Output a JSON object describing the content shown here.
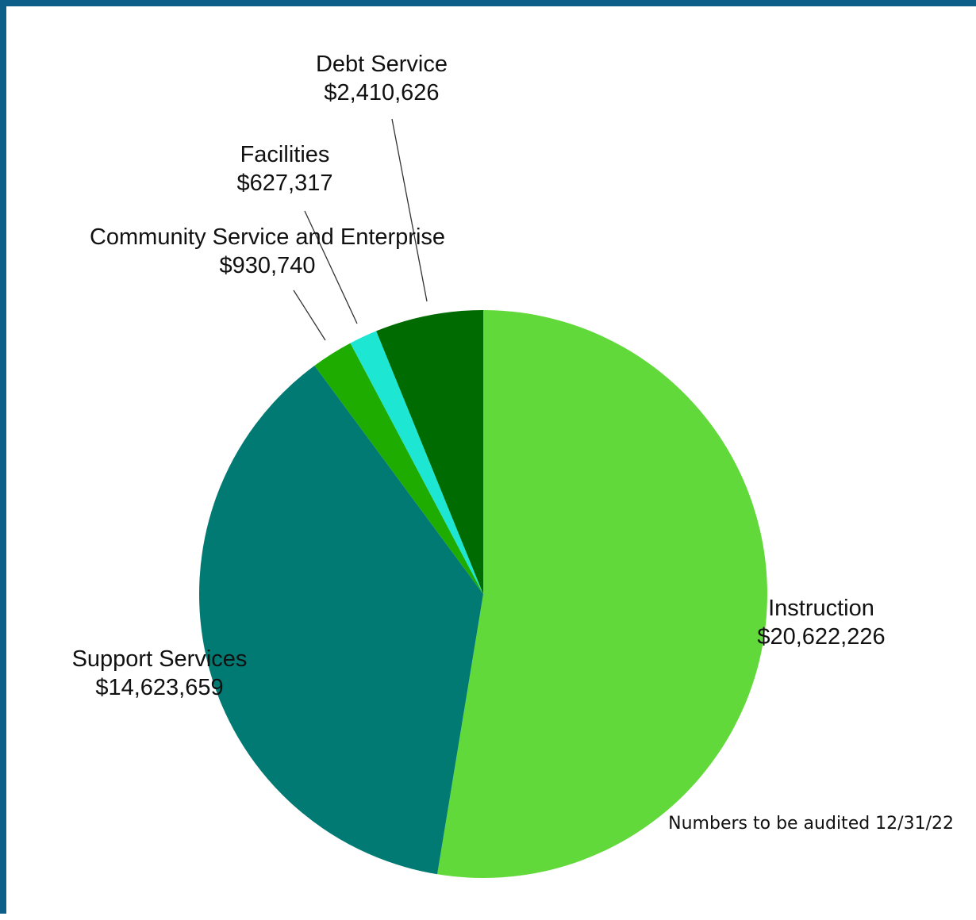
{
  "footnote": "Numbers to be audited 12/31/22",
  "chart_data": {
    "type": "pie",
    "start": "12 o'clock",
    "direction": "clockwise",
    "slices": [
      {
        "label": "Instruction",
        "value_label": "$20,622,226",
        "value": 20622226,
        "color": "#62d93a"
      },
      {
        "label": "Support Services",
        "value_label": "$14,623,659",
        "value": 14623659,
        "color": "#007a73"
      },
      {
        "label": "Community Service and Enterprise",
        "value_label": "$930,740",
        "value": 930740,
        "color": "#1eac00"
      },
      {
        "label": "Facilities",
        "value_label": "$627,317",
        "value": 627317,
        "color": "#1de6d3"
      },
      {
        "label": "Debt Service",
        "value_label": "$2,410,626",
        "value": 2410626,
        "color": "#006b00"
      }
    ]
  }
}
